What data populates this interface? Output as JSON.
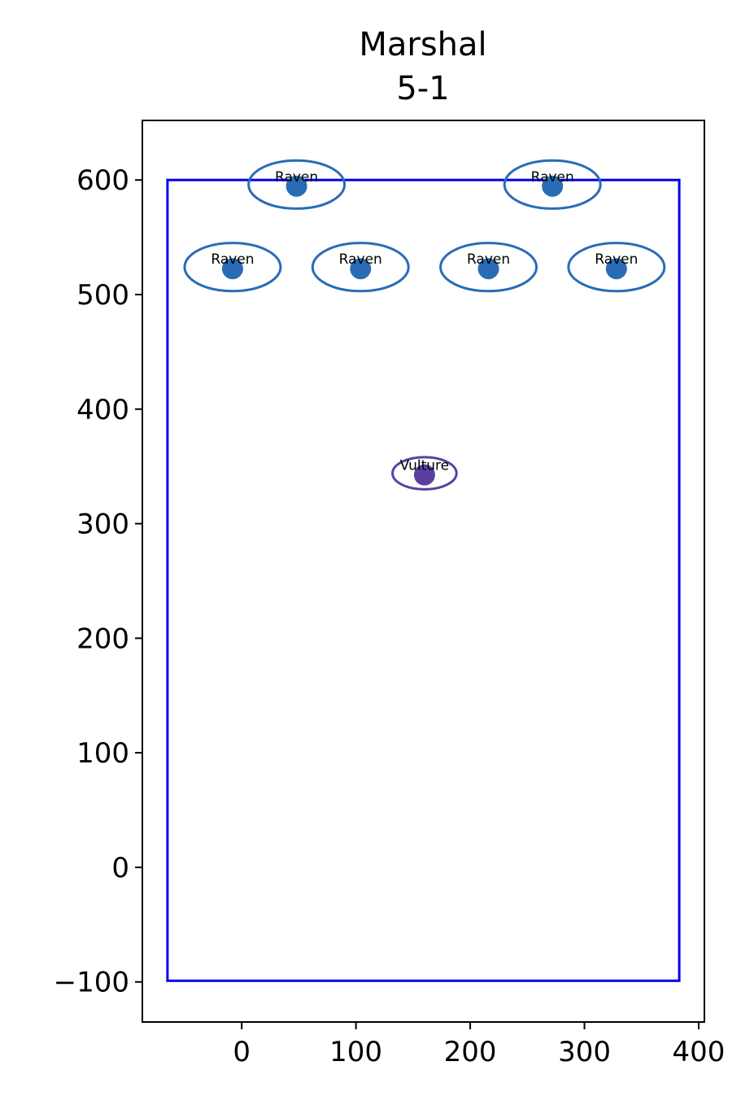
{
  "chart_data": {
    "type": "scatter",
    "title": "Marshal",
    "subtitle": "5-1",
    "xlabel": "",
    "ylabel": "",
    "xlim": [
      -87,
      405
    ],
    "ylim": [
      -135,
      652
    ],
    "x_ticks": [
      0,
      100,
      200,
      300,
      400
    ],
    "y_ticks": [
      -100,
      0,
      100,
      200,
      300,
      400,
      500,
      600
    ],
    "x_tick_labels": [
      "0",
      "100",
      "200",
      "300",
      "400"
    ],
    "y_tick_labels": [
      "−100",
      "0",
      "100",
      "200",
      "300",
      "400",
      "500",
      "600"
    ],
    "grid": false,
    "boundary": {
      "x_min": -65,
      "x_max": 383,
      "y_min": -99,
      "y_max": 600,
      "color": "#0000ee"
    },
    "units": [
      {
        "label": "Raven",
        "x": 48,
        "y": 596,
        "rx": 42,
        "ry": 21,
        "color": "#2a6cb4"
      },
      {
        "label": "Raven",
        "x": 272,
        "y": 596,
        "rx": 42,
        "ry": 21,
        "color": "#2a6cb4"
      },
      {
        "label": "Raven",
        "x": -8,
        "y": 524,
        "rx": 42,
        "ry": 21,
        "color": "#2a6cb4"
      },
      {
        "label": "Raven",
        "x": 104,
        "y": 524,
        "rx": 42,
        "ry": 21,
        "color": "#2a6cb4"
      },
      {
        "label": "Raven",
        "x": 216,
        "y": 524,
        "rx": 42,
        "ry": 21,
        "color": "#2a6cb4"
      },
      {
        "label": "Raven",
        "x": 328,
        "y": 524,
        "rx": 42,
        "ry": 21,
        "color": "#2a6cb4"
      },
      {
        "label": "Vulture",
        "x": 160,
        "y": 344,
        "rx": 28,
        "ry": 14,
        "color": "#5b3fa0"
      }
    ]
  }
}
